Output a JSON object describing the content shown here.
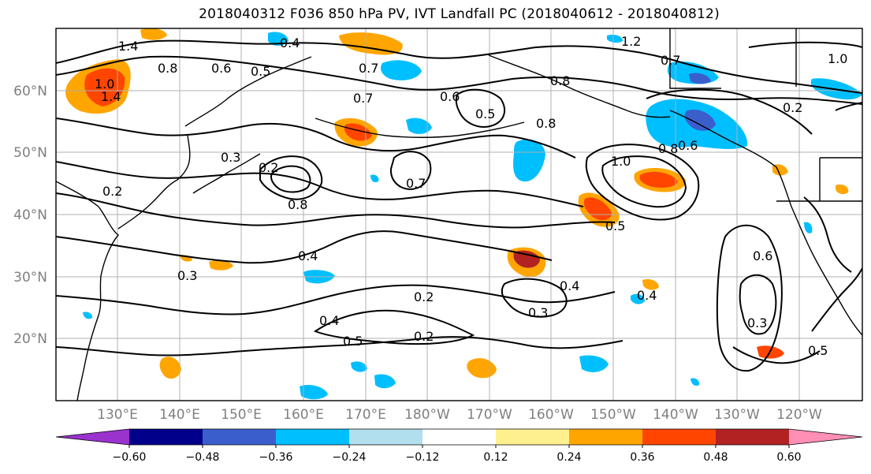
{
  "title": "2018040312 F036 850 hPa PV, IVT Landfall PC (2018040612 - 2018040812)",
  "map": {
    "lat_labels": [
      "60°N",
      "50°N",
      "40°N",
      "30°N",
      "20°N"
    ],
    "lon_labels": [
      "130°E",
      "140°E",
      "150°E",
      "160°E",
      "170°E",
      "180°W",
      "170°W",
      "160°W",
      "150°W",
      "140°W",
      "130°W",
      "120°W"
    ],
    "contour_labels": [
      "1.4",
      "1.4",
      "1.2",
      "0.8",
      "0.6",
      "0.5",
      "0.4",
      "0.7",
      "0.7",
      "0.6",
      "0.5",
      "0.8",
      "0.7",
      "1.0",
      "0.8",
      "0.6",
      "0.2",
      "0.3",
      "0.2",
      "0.8",
      "0.7",
      "0.5",
      "1.0",
      "0.4",
      "0.3",
      "0.2",
      "0.4",
      "0.3",
      "0.6",
      "0.5",
      "0.2",
      "0.4",
      "0.5",
      "0.3",
      "0.4",
      "0.2",
      "1.0",
      "0.8"
    ]
  },
  "colorbar": {
    "colors": [
      "#9a32cd",
      "#00008b",
      "#3a5fcd",
      "#00bfff",
      "#b2dfee",
      "#ffffff",
      "#fff08f",
      "#ffa500",
      "#ff4500",
      "#b22222",
      "#ff8fb5"
    ],
    "tick_labels": [
      "-0.60",
      "-0.48",
      "-0.36",
      "-0.24",
      "-0.12",
      "0.12",
      "0.24",
      "0.36",
      "0.48",
      "0.60"
    ]
  }
}
